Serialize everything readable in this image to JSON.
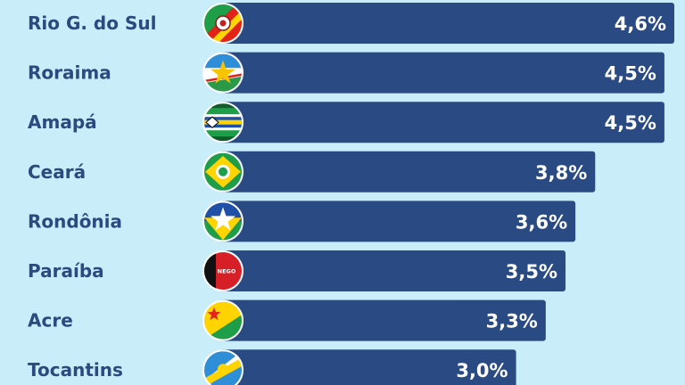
{
  "chart_data": {
    "type": "bar",
    "orientation": "horizontal",
    "categories": [
      "Rio G. do Sul",
      "Roraima",
      "Amapá",
      "Ceará",
      "Rondônia",
      "Paraíba",
      "Acre",
      "Tocantins"
    ],
    "values": [
      4.6,
      4.5,
      4.5,
      3.8,
      3.6,
      3.5,
      3.3,
      3.0
    ],
    "value_labels": [
      "4,6%",
      "4,5%",
      "4,5%",
      "3,8%",
      "3,6%",
      "3,5%",
      "3,3%",
      "3,0%"
    ],
    "flag_icons": [
      "rio-grande-do-sul-flag-icon",
      "roraima-flag-icon",
      "amapa-flag-icon",
      "ceara-flag-icon",
      "rondonia-flag-icon",
      "paraiba-flag-icon",
      "acre-flag-icon",
      "tocantins-flag-icon"
    ],
    "flag_text": {
      "paraiba": "NEGO"
    },
    "colors": {
      "background": "#c9eef9",
      "bar": "#2a4a84",
      "label": "#2c4a80",
      "value_text": "#ffffff"
    }
  }
}
